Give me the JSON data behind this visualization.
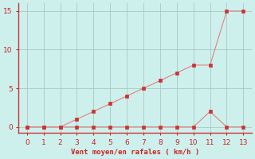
{
  "x": [
    0,
    1,
    2,
    3,
    4,
    5,
    6,
    7,
    8,
    9,
    10,
    11,
    12,
    13
  ],
  "y_line1": [
    0,
    0,
    0,
    0,
    0,
    0,
    0,
    0,
    0,
    0,
    0,
    2,
    0,
    0
  ],
  "y_line2": [
    0,
    0,
    0,
    1,
    2,
    3,
    4,
    5,
    6,
    7,
    8,
    8,
    15,
    15
  ],
  "line_color": "#e08080",
  "marker_color": "#cc3333",
  "bg_color": "#cef0ec",
  "grid_color": "#a8c8c4",
  "axis_color": "#cc3333",
  "text_color": "#cc2222",
  "xlabel": "Vent moyen/en rafales ( km/h )",
  "xlim": [
    -0.5,
    13.5
  ],
  "ylim": [
    -0.8,
    16
  ],
  "xticks": [
    0,
    1,
    2,
    3,
    4,
    5,
    6,
    7,
    8,
    9,
    10,
    11,
    12,
    13
  ],
  "yticks": [
    0,
    5,
    10,
    15
  ]
}
